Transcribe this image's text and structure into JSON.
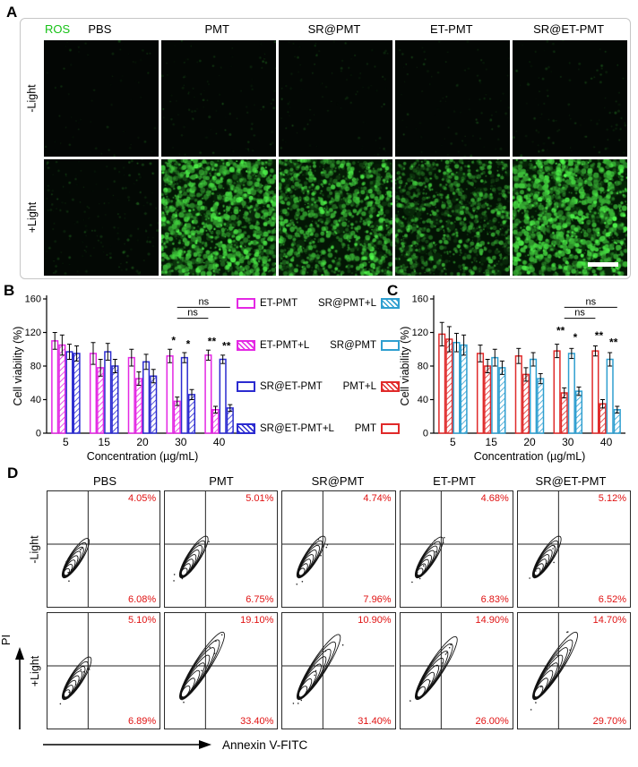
{
  "panel_a": {
    "label": "A",
    "ros_label": "ROS",
    "columns": [
      "PBS",
      "PMT",
      "SR@PMT",
      "ET-PMT",
      "SR@ET-PMT"
    ],
    "rows": [
      {
        "label": "-Light",
        "intensities": [
          0.02,
          0.05,
          0.04,
          0.04,
          0.05
        ]
      },
      {
        "label": "+Light",
        "intensities": [
          0.1,
          0.95,
          0.82,
          0.68,
          1.0
        ]
      }
    ]
  },
  "panel_b": {
    "label": "B"
  },
  "panel_c": {
    "label": "C"
  },
  "legend": {
    "left": [
      {
        "label": "ET-PMT",
        "color": "#e428e4",
        "pattern": "open"
      },
      {
        "label": "ET-PMT+L",
        "color": "#e428e4",
        "pattern": "hatch"
      },
      {
        "label": "SR@ET-PMT",
        "color": "#2b2bd0",
        "pattern": "open"
      },
      {
        "label": "SR@ET-PMT+L",
        "color": "#2b2bd0",
        "pattern": "hatch"
      }
    ],
    "right": [
      {
        "label": "SR@PMT+L",
        "color": "#2f9fd0",
        "pattern": "hatch"
      },
      {
        "label": "SR@PMT",
        "color": "#2f9fd0",
        "pattern": "open"
      },
      {
        "label": "PMT+L",
        "color": "#e02a2a",
        "pattern": "hatch"
      },
      {
        "label": "PMT",
        "color": "#e02a2a",
        "pattern": "open"
      }
    ]
  },
  "chart_data": [
    {
      "type": "bar",
      "panel": "B",
      "xlabel": "Concentration (µg/mL)",
      "ylabel": "Cell viability (%)",
      "ylim": [
        0,
        160
      ],
      "yticks": [
        0,
        40,
        80,
        120,
        160
      ],
      "categories": [
        "5",
        "15",
        "20",
        "30",
        "40"
      ],
      "series": [
        {
          "name": "ET-PMT",
          "color": "#e428e4",
          "pattern": "open",
          "values": [
            110,
            95,
            90,
            92,
            93
          ],
          "errors": [
            10,
            13,
            10,
            8,
            6
          ]
        },
        {
          "name": "ET-PMT+L",
          "color": "#e428e4",
          "pattern": "hatch",
          "values": [
            105,
            78,
            65,
            38,
            28
          ],
          "errors": [
            12,
            10,
            8,
            5,
            4
          ]
        },
        {
          "name": "SR@ET-PMT",
          "color": "#2b2bd0",
          "pattern": "open",
          "values": [
            97,
            97,
            85,
            90,
            88
          ],
          "errors": [
            9,
            10,
            9,
            6,
            5
          ]
        },
        {
          "name": "SR@ET-PMT+L",
          "color": "#2b2bd0",
          "pattern": "hatch",
          "values": [
            95,
            80,
            68,
            46,
            30
          ],
          "errors": [
            9,
            8,
            8,
            6,
            4
          ]
        }
      ],
      "annotations": {
        "stars": [
          {
            "group": 3,
            "pos": 0.5,
            "y": 106,
            "text": "*"
          },
          {
            "group": 3,
            "pos": 2.5,
            "y": 102,
            "text": "*"
          },
          {
            "group": 4,
            "pos": 0.5,
            "y": 105,
            "text": "**"
          },
          {
            "group": 4,
            "pos": 2.5,
            "y": 100,
            "text": "**"
          }
        ],
        "brackets": [
          {
            "g1": 3,
            "p1": 1,
            "g2": 4,
            "p2": 3,
            "y": 150,
            "text": "ns"
          },
          {
            "g1": 3,
            "p1": 1,
            "g2": 4,
            "p2": 0,
            "y": 137,
            "text": "ns"
          }
        ]
      }
    },
    {
      "type": "bar",
      "panel": "C",
      "xlabel": "Concentration (µg/mL)",
      "ylabel": "Cell viability (%)",
      "ylim": [
        0,
        160
      ],
      "yticks": [
        0,
        40,
        80,
        120,
        160
      ],
      "categories": [
        "5",
        "15",
        "20",
        "30",
        "40"
      ],
      "series": [
        {
          "name": "PMT",
          "color": "#e02a2a",
          "pattern": "open",
          "values": [
            118,
            95,
            92,
            98,
            98
          ],
          "errors": [
            14,
            10,
            9,
            8,
            6
          ]
        },
        {
          "name": "PMT+L",
          "color": "#e02a2a",
          "pattern": "hatch",
          "values": [
            112,
            80,
            70,
            48,
            35
          ],
          "errors": [
            15,
            8,
            8,
            6,
            5
          ]
        },
        {
          "name": "SR@PMT",
          "color": "#2f9fd0",
          "pattern": "open",
          "values": [
            108,
            90,
            88,
            95,
            88
          ],
          "errors": [
            11,
            10,
            8,
            6,
            8
          ]
        },
        {
          "name": "SR@PMT+L",
          "color": "#2f9fd0",
          "pattern": "hatch",
          "values": [
            105,
            78,
            65,
            50,
            28
          ],
          "errors": [
            12,
            8,
            6,
            5,
            4
          ]
        }
      ],
      "annotations": {
        "stars": [
          {
            "group": 3,
            "pos": 0.5,
            "y": 118,
            "text": "**"
          },
          {
            "group": 3,
            "pos": 2.5,
            "y": 110,
            "text": "*"
          },
          {
            "group": 4,
            "pos": 0.5,
            "y": 112,
            "text": "**"
          },
          {
            "group": 4,
            "pos": 2.5,
            "y": 104,
            "text": "**"
          }
        ],
        "brackets": [
          {
            "g1": 3,
            "p1": 1,
            "g2": 4,
            "p2": 3,
            "y": 150,
            "text": "ns"
          },
          {
            "g1": 3,
            "p1": 1,
            "g2": 4,
            "p2": 0,
            "y": 137,
            "text": "ns"
          }
        ]
      }
    }
  ],
  "panel_d": {
    "label": "D",
    "x_axis": "Annexin V-FITC",
    "y_axis": "PI",
    "columns": [
      "PBS",
      "PMT",
      "SR@PMT",
      "ET-PMT",
      "SR@ET-PMT"
    ],
    "rows": [
      {
        "label": "-Light",
        "cells": [
          {
            "upper": "4.05%",
            "lower": "6.08%",
            "stretch": 0.33
          },
          {
            "upper": "5.01%",
            "lower": "6.75%",
            "stretch": 0.38
          },
          {
            "upper": "4.74%",
            "lower": "7.96%",
            "stretch": 0.38
          },
          {
            "upper": "4.68%",
            "lower": "6.83%",
            "stretch": 0.36
          },
          {
            "upper": "5.12%",
            "lower": "6.52%",
            "stretch": 0.38
          }
        ]
      },
      {
        "label": "+Light",
        "cells": [
          {
            "upper": "5.10%",
            "lower": "6.89%",
            "stretch": 0.4
          },
          {
            "upper": "19.10%",
            "lower": "33.40%",
            "stretch": 0.95
          },
          {
            "upper": "10.90%",
            "lower": "31.40%",
            "stretch": 0.9
          },
          {
            "upper": "14.90%",
            "lower": "26.00%",
            "stretch": 0.85
          },
          {
            "upper": "14.70%",
            "lower": "29.70%",
            "stretch": 0.95
          }
        ]
      }
    ]
  }
}
